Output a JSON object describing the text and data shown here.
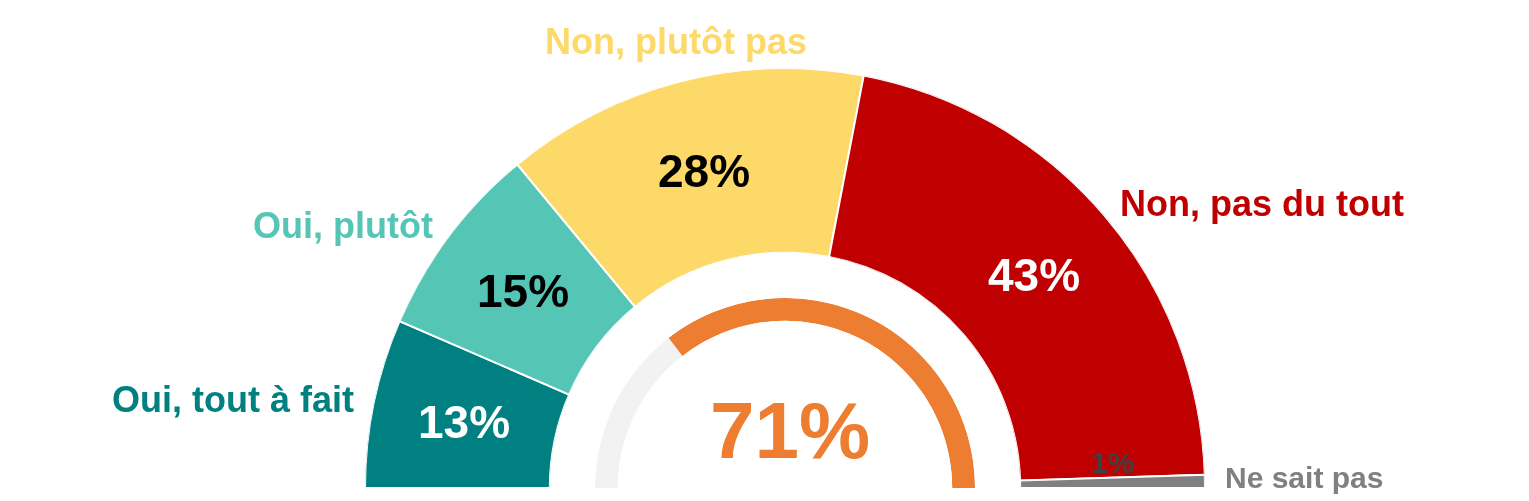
{
  "chart_data": [
    {
      "type": "donut",
      "categories": [
        "Oui, tout à fait",
        "Oui, plutôt",
        "Non, plutôt pas",
        "Non, pas du tout",
        "Ne sait pas"
      ],
      "values": [
        13,
        15,
        28,
        43,
        1
      ],
      "colors": [
        "#008080",
        "#55c6b6",
        "#fdd96a",
        "#c00000",
        "#808080"
      ],
      "value_labels": [
        "13%",
        "15%",
        "28%",
        "43%",
        "1%"
      ],
      "legend": false
    },
    {
      "type": "donut",
      "categories": [
        null,
        null
      ],
      "values": [
        29,
        71
      ],
      "colors": [
        "#f2f2f2",
        "#ed7d31"
      ],
      "annotations": [
        "71%"
      ],
      "legend": false
    }
  ]
}
